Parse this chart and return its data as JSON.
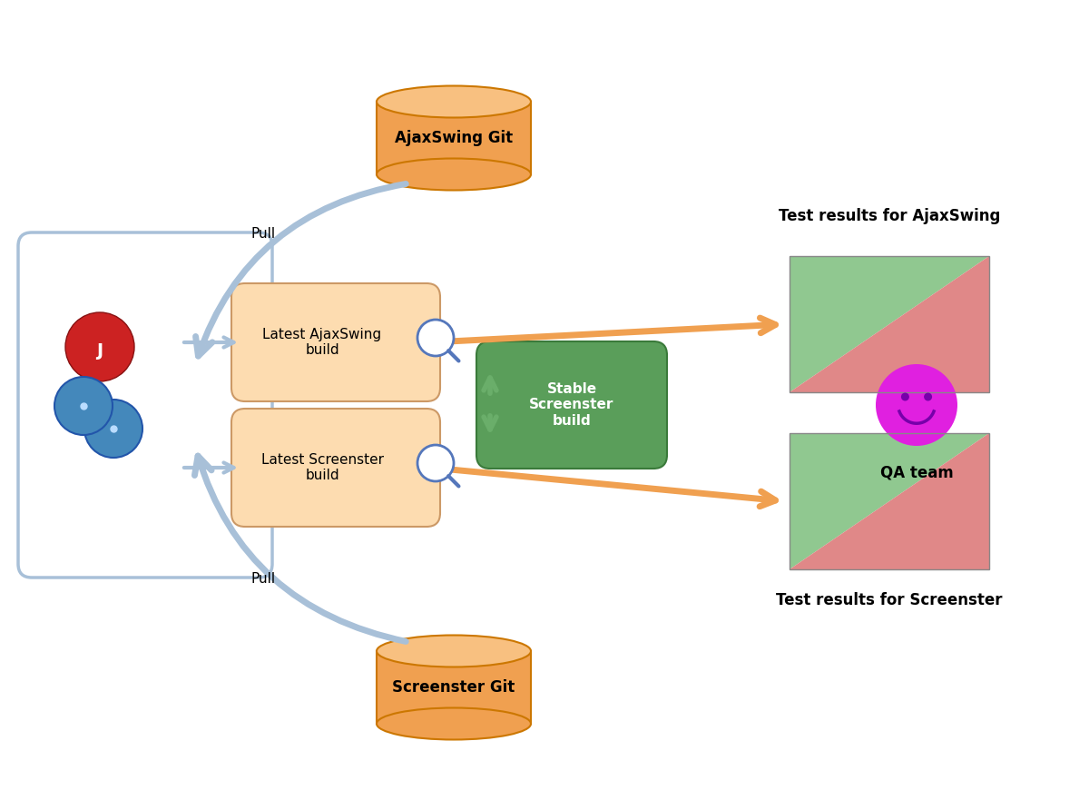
{
  "bg_color": "#ffffff",
  "title": "",
  "ajaxswing_git_label": "AjaxSwing Git",
  "screenster_git_label": "Screenster Git",
  "ajax_build_label": "Latest AjaxSwing\nbuild",
  "screenster_build_label": "Latest Screenster\nbuild",
  "stable_label": "Stable\nScreenster\nbuild",
  "pull_top_label": "Pull",
  "pull_bottom_label": "Pull",
  "test_ajax_label": "Test results for AjaxSwing",
  "test_screenster_label": "Test results for Screenster",
  "qa_label": "QA team",
  "cylinder_color_face": "#F0A050",
  "cylinder_color_top": "#F8C080",
  "cylinder_color_edge": "#CC7700",
  "build_box_color": "#FDDCB0",
  "build_box_edge": "#CC9966",
  "stable_box_color": "#5A9E5A",
  "stable_box_edge": "#3A7A3A",
  "stable_text_color": "#ffffff",
  "arrow_color": "#A8C0D8",
  "orange_arrow_color": "#F0A050",
  "green_arrow_color": "#6AAE6A",
  "tri_green": "#90C890",
  "tri_pink": "#E08888",
  "smiley_color": "#E020E0",
  "smiley_eye_color": "#7700AA",
  "smiley_mouth_color": "#7700AA"
}
